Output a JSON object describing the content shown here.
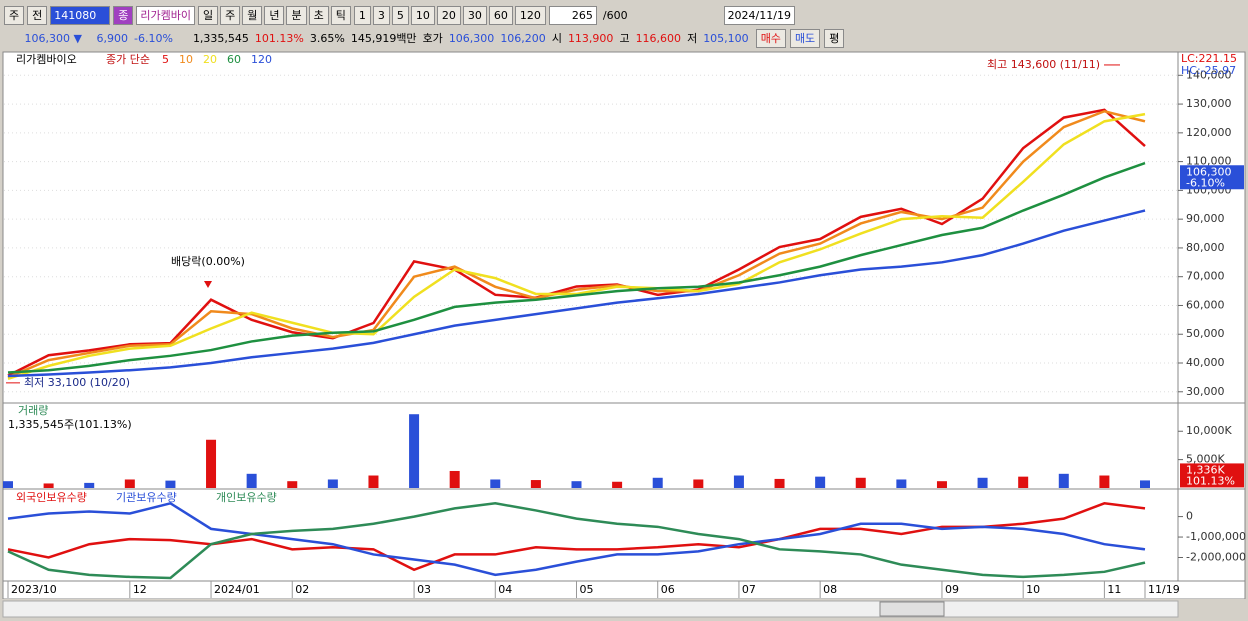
{
  "toolbar": {
    "market": "주",
    "prev": "전",
    "code": "141080",
    "name_tag": "종",
    "name": "리가켐바이",
    "periods": [
      "일",
      "주",
      "월",
      "년",
      "분",
      "초",
      "틱"
    ],
    "intervals": [
      "1",
      "3",
      "5",
      "10",
      "20",
      "30",
      "60",
      "120"
    ],
    "count": "265",
    "max": "/600",
    "date": "2024/11/19"
  },
  "quote": {
    "price": "106,300 ▼",
    "change": "6,900",
    "rate": "-6.10%",
    "volume": "1,335,545",
    "vol_ratio": "101.13%",
    "turnover": "3.65%",
    "amount": "145,919백만",
    "ask_label": "호가",
    "ask": "106,300",
    "bid": "106,200",
    "open_label": "시",
    "open": "113,900",
    "high_label": "고",
    "high": "116,600",
    "low_label": "저",
    "low": "105,100",
    "buy": "매수",
    "sell": "매도",
    "avg": "평"
  },
  "chart_data": [
    {
      "type": "line",
      "title": "리가켐바이오",
      "legend_prefix": "종가 단순",
      "categories": [
        "2023/10",
        null,
        null,
        "12",
        null,
        "2024/01",
        null,
        "02",
        null,
        null,
        "03",
        null,
        "04",
        null,
        "05",
        null,
        "06",
        null,
        "07",
        null,
        "08",
        null,
        null,
        "09",
        null,
        "10",
        null,
        "11",
        "11/19"
      ],
      "series": [
        {
          "name": "5",
          "color": "#e01010",
          "values": [
            35600,
            42700,
            44400,
            46500,
            46900,
            62000,
            55000,
            50700,
            48600,
            53900,
            75300,
            72500,
            63700,
            62700,
            66600,
            67300,
            63700,
            65500,
            72500,
            80300,
            83100,
            90800,
            93600,
            88300,
            97100,
            114700,
            125300,
            128000,
            115400
          ]
        },
        {
          "name": "10",
          "color": "#f08a1c",
          "values": [
            35000,
            41000,
            43500,
            46000,
            46500,
            58000,
            57000,
            52000,
            49000,
            51500,
            70000,
            73500,
            66500,
            62500,
            65500,
            67000,
            65000,
            65000,
            70500,
            78000,
            81500,
            88500,
            92500,
            90000,
            94000,
            110000,
            122000,
            127500,
            124000
          ]
        },
        {
          "name": "20",
          "color": "#f0e020",
          "values": [
            34500,
            39000,
            42500,
            45000,
            46000,
            52000,
            57500,
            54000,
            50500,
            50000,
            63000,
            72500,
            69500,
            64000,
            64000,
            66500,
            66000,
            65000,
            67500,
            75000,
            79500,
            85000,
            90000,
            91000,
            90500,
            103000,
            116000,
            124000,
            126500
          ]
        },
        {
          "name": "60",
          "color": "#1e9040",
          "values": [
            36700,
            37500,
            39000,
            41000,
            42500,
            44500,
            47500,
            49500,
            50500,
            51000,
            55000,
            59500,
            61000,
            62000,
            63500,
            65000,
            66000,
            66500,
            68000,
            70500,
            73500,
            77500,
            81000,
            84500,
            87000,
            93000,
            98500,
            104500,
            109500
          ]
        },
        {
          "name": "120",
          "color": "#2a4fd8",
          "values": [
            35500,
            36000,
            36700,
            37500,
            38500,
            40000,
            42000,
            43500,
            45000,
            47000,
            50000,
            53000,
            55000,
            57000,
            59000,
            61000,
            62500,
            64000,
            66000,
            68000,
            70500,
            72500,
            73500,
            75000,
            77500,
            81500,
            86000,
            89500,
            93000
          ]
        }
      ],
      "ylim": [
        26100,
        148100
      ],
      "yticks": [
        {
          "value": 30000,
          "label": "30,000"
        },
        {
          "value": 40000,
          "label": "40,000"
        },
        {
          "value": 50000,
          "label": "50,000"
        },
        {
          "value": 60000,
          "label": "60,000"
        },
        {
          "value": 70000,
          "label": "70,000"
        },
        {
          "value": 80000,
          "label": "80,000"
        },
        {
          "value": 90000,
          "label": "90,000"
        },
        {
          "value": 100000,
          "label": "100,000"
        },
        {
          "value": 110000,
          "label": "110,000"
        },
        {
          "value": 120000,
          "label": "120,000"
        },
        {
          "value": 130000,
          "label": "130,000"
        },
        {
          "value": 140000,
          "label": "140,000"
        }
      ],
      "grid": true,
      "high": {
        "value": 143600,
        "label": "최고 143,600 (11/11)"
      },
      "low": {
        "value": 33100,
        "label": "최저 33,100 (10/20)"
      },
      "note": "배당락(0.00%)",
      "last_price": {
        "value": 106300,
        "label": "106,300"
      },
      "last_change": "-6.10%",
      "lc": "LC:221.15",
      "hc": "HC:-25.97"
    },
    {
      "type": "bar",
      "title": "거래량",
      "subtitle": "1,335,545주(101.13%)",
      "color": "#2a4fd8",
      "values": [
        1200,
        800,
        900,
        1500,
        1300,
        8500,
        2500,
        1200,
        1500,
        2200,
        13000,
        3000,
        1500,
        1400,
        1200,
        1100,
        1800,
        1500,
        2200,
        1600,
        2000,
        1800,
        1500,
        1200,
        1800,
        2000,
        2500,
        2200,
        1336
      ],
      "ylim": [
        0,
        14800
      ],
      "yticks": [
        {
          "value": 5000,
          "label": "5,000K"
        },
        {
          "value": 10000,
          "label": "10,000K"
        }
      ],
      "last_volume": {
        "value": 1336,
        "label": "1,336K"
      },
      "last_ratio": "101.13%"
    },
    {
      "type": "line",
      "series": [
        {
          "name": "외국인보유수량",
          "color": "#e01010",
          "values": [
            -1600000,
            -2000000,
            -1350000,
            -1100000,
            -1150000,
            -1350000,
            -1100000,
            -1600000,
            -1500000,
            -1600000,
            -2600000,
            -1850000,
            -1850000,
            -1500000,
            -1600000,
            -1600000,
            -1500000,
            -1350000,
            -1500000,
            -1100000,
            -600000,
            -600000,
            -850000,
            -500000,
            -500000,
            -350000,
            -100000,
            650000,
            400000
          ]
        },
        {
          "name": "기관보유수량",
          "color": "#2a4fd8",
          "values": [
            -100000,
            150000,
            250000,
            150000,
            650000,
            -600000,
            -850000,
            -1100000,
            -1350000,
            -1850000,
            -2100000,
            -2350000,
            -2850000,
            -2600000,
            -2200000,
            -1850000,
            -1850000,
            -1700000,
            -1350000,
            -1100000,
            -850000,
            -350000,
            -350000,
            -600000,
            -500000,
            -600000,
            -850000,
            -1350000,
            -1600000
          ]
        },
        {
          "name": "개인보유수량",
          "color": "#2e8b57",
          "values": [
            -1700000,
            -2600000,
            -2850000,
            -2950000,
            -3000000,
            -1350000,
            -850000,
            -700000,
            -600000,
            -350000,
            0,
            400000,
            650000,
            300000,
            -100000,
            -350000,
            -500000,
            -850000,
            -1100000,
            -1600000,
            -1700000,
            -1850000,
            -2350000,
            -2600000,
            -2850000,
            -2950000,
            -2850000,
            -2700000,
            -2250000
          ]
        }
      ],
      "ylim": [
        -3100000,
        1300000
      ],
      "yticks": [
        0,
        {
          "value": -1000000,
          "label": "-1,000,000"
        },
        {
          "value": -2000000,
          "label": "-2,000,000"
        }
      ]
    }
  ]
}
